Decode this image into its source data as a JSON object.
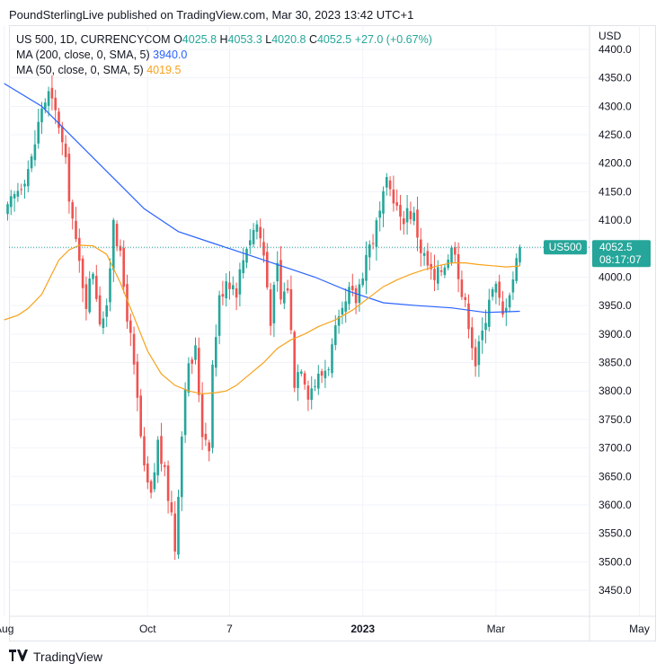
{
  "header": {
    "publisher_line": "PoundSterlingLive published on TradingView.com, Mar 30, 2023 13:42 UTC+1"
  },
  "legend": {
    "symbol": "US 500, 1D, CURRENCYCOM",
    "o_label": "O",
    "o_value": "4025.8",
    "h_label": "H",
    "h_value": "4053.3",
    "l_label": "L",
    "l_value": "4020.8",
    "c_label": "C",
    "c_value": "4052.5",
    "change": "+27.0 (+0.67%)",
    "ma200_label": "MA (200, close, 0, SMA, 5)",
    "ma200_value": "3940.0",
    "ma50_label": "MA (50, close, 0, SMA, 5)",
    "ma50_value": "4019.5"
  },
  "currency": "USD",
  "price_badge": {
    "symbol": "US500",
    "price": "4052.5",
    "countdown": "08:17:07"
  },
  "footer": {
    "brand": "TradingView"
  },
  "colors": {
    "up": "#26a69a",
    "down": "#ef5350",
    "ma200": "#2962ff",
    "ma50": "#f7a21b",
    "grid": "#f0f3fa"
  },
  "chart_data": {
    "type": "candlestick",
    "title": "US 500, 1D, CURRENCYCOM",
    "ylim": [
      3400,
      4410
    ],
    "y_ticks": [
      "4400.0",
      "4350.0",
      "4300.0",
      "4250.0",
      "4200.0",
      "4150.0",
      "4100.0",
      "4050.0",
      "4000.0",
      "3950.0",
      "3900.0",
      "3850.0",
      "3800.0",
      "3750.0",
      "3700.0",
      "3650.0",
      "3600.0",
      "3550.0",
      "3500.0",
      "3450.0"
    ],
    "x_ticks": [
      {
        "label": "Aug",
        "idx": -1
      },
      {
        "label": "Oct",
        "idx": 41
      },
      {
        "label": "7",
        "idx": 65
      },
      {
        "label": "2023",
        "idx": 104
      },
      {
        "label": "Mar",
        "idx": 143
      },
      {
        "label": "May",
        "idx": 185
      }
    ],
    "grid": "on",
    "last_price": 4052.5,
    "anchors": [
      [
        0,
        4115
      ],
      [
        3,
        4155
      ],
      [
        7,
        4205
      ],
      [
        10,
        4300
      ],
      [
        12,
        4320
      ],
      [
        15,
        4270
      ],
      [
        17,
        4195
      ],
      [
        20,
        4055
      ],
      [
        23,
        3960
      ],
      [
        25,
        4015
      ],
      [
        27,
        3930
      ],
      [
        29,
        3935
      ],
      [
        31,
        4110
      ],
      [
        33,
        4030
      ],
      [
        36,
        3890
      ],
      [
        38,
        3780
      ],
      [
        40,
        3655
      ],
      [
        42,
        3610
      ],
      [
        44,
        3710
      ],
      [
        46,
        3650
      ],
      [
        48,
        3585
      ],
      [
        49,
        3525
      ],
      [
        50,
        3630
      ],
      [
        52,
        3820
      ],
      [
        55,
        3870
      ],
      [
        57,
        3730
      ],
      [
        59,
        3710
      ],
      [
        60,
        3845
      ],
      [
        62,
        3960
      ],
      [
        64,
        4000
      ],
      [
        67,
        3980
      ],
      [
        70,
        4060
      ],
      [
        73,
        4095
      ],
      [
        75,
        4040
      ],
      [
        77,
        3930
      ],
      [
        79,
        4015
      ],
      [
        80,
        3960
      ],
      [
        82,
        3985
      ],
      [
        84,
        3820
      ],
      [
        86,
        3850
      ],
      [
        88,
        3800
      ],
      [
        90,
        3815
      ],
      [
        92,
        3830
      ],
      [
        94,
        3850
      ],
      [
        96,
        3900
      ],
      [
        98,
        3930
      ],
      [
        100,
        3970
      ],
      [
        102,
        3960
      ],
      [
        105,
        4040
      ],
      [
        107,
        4070
      ],
      [
        109,
        4110
      ],
      [
        111,
        4160
      ],
      [
        113,
        4145
      ],
      [
        115,
        4095
      ],
      [
        117,
        4120
      ],
      [
        119,
        4105
      ],
      [
        121,
        4050
      ],
      [
        123,
        4020
      ],
      [
        125,
        3990
      ],
      [
        127,
        4015
      ],
      [
        129,
        4040
      ],
      [
        131,
        4055
      ],
      [
        133,
        3970
      ],
      [
        135,
        3925
      ],
      [
        137,
        3850
      ],
      [
        139,
        3900
      ],
      [
        141,
        3970
      ],
      [
        143,
        3980
      ],
      [
        145,
        3930
      ],
      [
        146,
        3960
      ],
      [
        148,
        4000
      ],
      [
        150,
        4052.5
      ]
    ],
    "ma200": [
      [
        -1,
        4340
      ],
      [
        10,
        4300
      ],
      [
        20,
        4240
      ],
      [
        30,
        4180
      ],
      [
        40,
        4120
      ],
      [
        50,
        4080
      ],
      [
        60,
        4060
      ],
      [
        70,
        4040
      ],
      [
        80,
        4020
      ],
      [
        90,
        4000
      ],
      [
        100,
        3975
      ],
      [
        110,
        3955
      ],
      [
        120,
        3950
      ],
      [
        130,
        3946
      ],
      [
        140,
        3938
      ],
      [
        150,
        3940
      ]
    ],
    "ma50": [
      [
        -1,
        3925
      ],
      [
        3,
        3933
      ],
      [
        6,
        3945
      ],
      [
        10,
        3970
      ],
      [
        15,
        4030
      ],
      [
        18,
        4048
      ],
      [
        21,
        4056
      ],
      [
        25,
        4055
      ],
      [
        29,
        4040
      ],
      [
        33,
        3990
      ],
      [
        37,
        3930
      ],
      [
        41,
        3870
      ],
      [
        45,
        3830
      ],
      [
        49,
        3810
      ],
      [
        53,
        3800
      ],
      [
        57,
        3795
      ],
      [
        61,
        3797
      ],
      [
        64,
        3800
      ],
      [
        67,
        3810
      ],
      [
        71,
        3830
      ],
      [
        75,
        3850
      ],
      [
        79,
        3875
      ],
      [
        83,
        3890
      ],
      [
        87,
        3900
      ],
      [
        91,
        3913
      ],
      [
        96,
        3925
      ],
      [
        101,
        3942
      ],
      [
        106,
        3965
      ],
      [
        110,
        3983
      ],
      [
        114,
        3995
      ],
      [
        118,
        4005
      ],
      [
        122,
        4013
      ],
      [
        126,
        4020
      ],
      [
        130,
        4025
      ],
      [
        134,
        4025
      ],
      [
        138,
        4022
      ],
      [
        142,
        4020
      ],
      [
        146,
        4018
      ],
      [
        150,
        4019.5
      ]
    ]
  }
}
